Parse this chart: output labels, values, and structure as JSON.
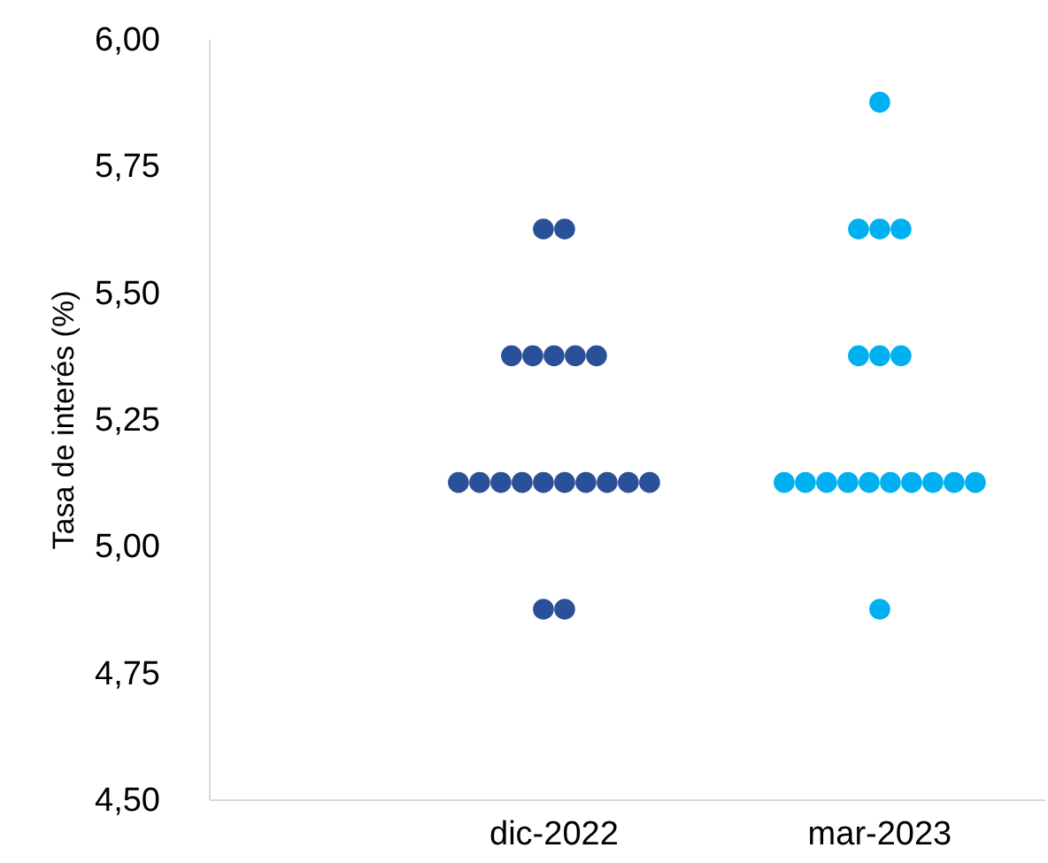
{
  "chart_data": {
    "type": "scatter",
    "ylabel": "Tasa de interés (%)",
    "categories": [
      "dic-2022",
      "mar-2023"
    ],
    "series": [
      {
        "color": "#2a5099",
        "x": [
          "dic-2022",
          "dic-2022",
          "dic-2022",
          "dic-2022",
          "dic-2022",
          "dic-2022",
          "dic-2022",
          "dic-2022",
          "dic-2022",
          "dic-2022",
          "dic-2022",
          "dic-2022",
          "dic-2022",
          "dic-2022",
          "dic-2022",
          "dic-2022",
          "dic-2022",
          "dic-2022",
          "dic-2022"
        ],
        "values": [
          5.625,
          5.625,
          5.375,
          5.375,
          5.375,
          5.375,
          5.375,
          5.125,
          5.125,
          5.125,
          5.125,
          5.125,
          5.125,
          5.125,
          5.125,
          5.125,
          5.125,
          4.875,
          4.875
        ]
      },
      {
        "color": "#00b0f0",
        "x": [
          "mar-2023",
          "mar-2023",
          "mar-2023",
          "mar-2023",
          "mar-2023",
          "mar-2023",
          "mar-2023",
          "mar-2023",
          "mar-2023",
          "mar-2023",
          "mar-2023",
          "mar-2023",
          "mar-2023",
          "mar-2023",
          "mar-2023",
          "mar-2023",
          "mar-2023",
          "mar-2023"
        ],
        "values": [
          5.875,
          5.625,
          5.625,
          5.625,
          5.375,
          5.375,
          5.375,
          5.125,
          5.125,
          5.125,
          5.125,
          5.125,
          5.125,
          5.125,
          5.125,
          5.125,
          5.125,
          4.875
        ]
      }
    ],
    "ylim": [
      4.5,
      6.0
    ],
    "yticks": [
      {
        "value": 4.5,
        "label": "4,50"
      },
      {
        "value": 4.75,
        "label": "4,75"
      },
      {
        "value": 5.0,
        "label": "5,00"
      },
      {
        "value": 5.25,
        "label": "5,25"
      },
      {
        "value": 5.5,
        "label": "5,50"
      },
      {
        "value": 5.75,
        "label": "5,75"
      },
      {
        "value": 6.0,
        "label": "6,00"
      }
    ],
    "marker": "circle",
    "grid": false,
    "legend": false
  }
}
